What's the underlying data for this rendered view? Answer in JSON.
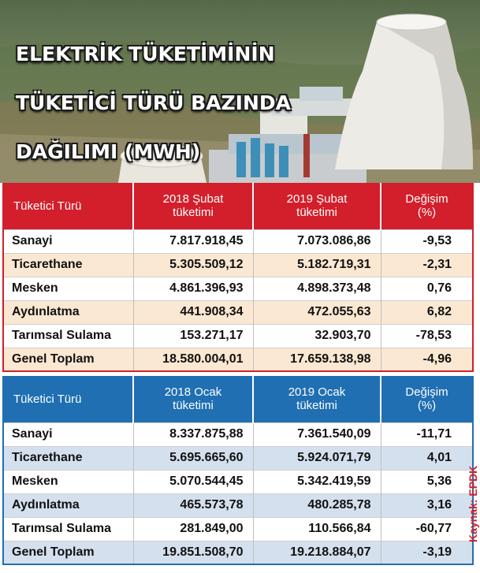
{
  "title": {
    "lines": [
      "ELEKTRİK TÜKETİMİNİN",
      "TÜKETİCİ  TÜRÜ BAZINDA",
      "DAĞILIMI (MWH)"
    ]
  },
  "colors": {
    "february_header": "#d21f2b",
    "february_alt_row": "#fbe8d2",
    "january_header": "#1f6fb2",
    "january_alt_row": "#d5e0ee",
    "source_text": "#d21f2b"
  },
  "chart_data": [
    {
      "type": "table",
      "columns": [
        "Tüketici Türü",
        "2018 Şubat\ntüketimi",
        "2019 Şubat\ntüketimi",
        "Değişim\n(%)"
      ],
      "rows": [
        [
          "Sanayi",
          "7.817.918,45",
          "7.073.086,86",
          "-9,53"
        ],
        [
          "Ticarethane",
          "5.305.509,12",
          "5.182.719,31",
          "-2,31"
        ],
        [
          "Mesken",
          "4.861.396,93",
          "4.898.373,48",
          "0,76"
        ],
        [
          "Aydınlatma",
          "441.908,34",
          "472.055,63",
          "6,82"
        ],
        [
          "Tarımsal Sulama",
          "153.271,17",
          "32.903,70",
          "-78,53"
        ],
        [
          "Genel Toplam",
          "18.580.004,01",
          "17.659.138,98",
          "-4,96"
        ]
      ]
    },
    {
      "type": "table",
      "columns": [
        "Tüketici Türü",
        "2018 Ocak\ntüketimi",
        "2019 Ocak\ntüketimi",
        "Değişim\n(%)"
      ],
      "rows": [
        [
          "Sanayi",
          "8.337.875,88",
          "7.361.540,09",
          "-11,71"
        ],
        [
          "Ticarethane",
          "5.695.665,60",
          "5.924.071,79",
          "4,01"
        ],
        [
          "Mesken",
          "5.070.544,45",
          "5.342.419,59",
          "5,36"
        ],
        [
          "Aydınlatma",
          "465.573,78",
          "480.285,78",
          "3,16"
        ],
        [
          "Tarımsal Sulama",
          "281.849,00",
          "110.566,84",
          "-60,77"
        ],
        [
          "Genel Toplam",
          "19.851.508,70",
          "19.218.884,07",
          "-3,19"
        ]
      ]
    }
  ],
  "source": "Kaynak: EPDK"
}
